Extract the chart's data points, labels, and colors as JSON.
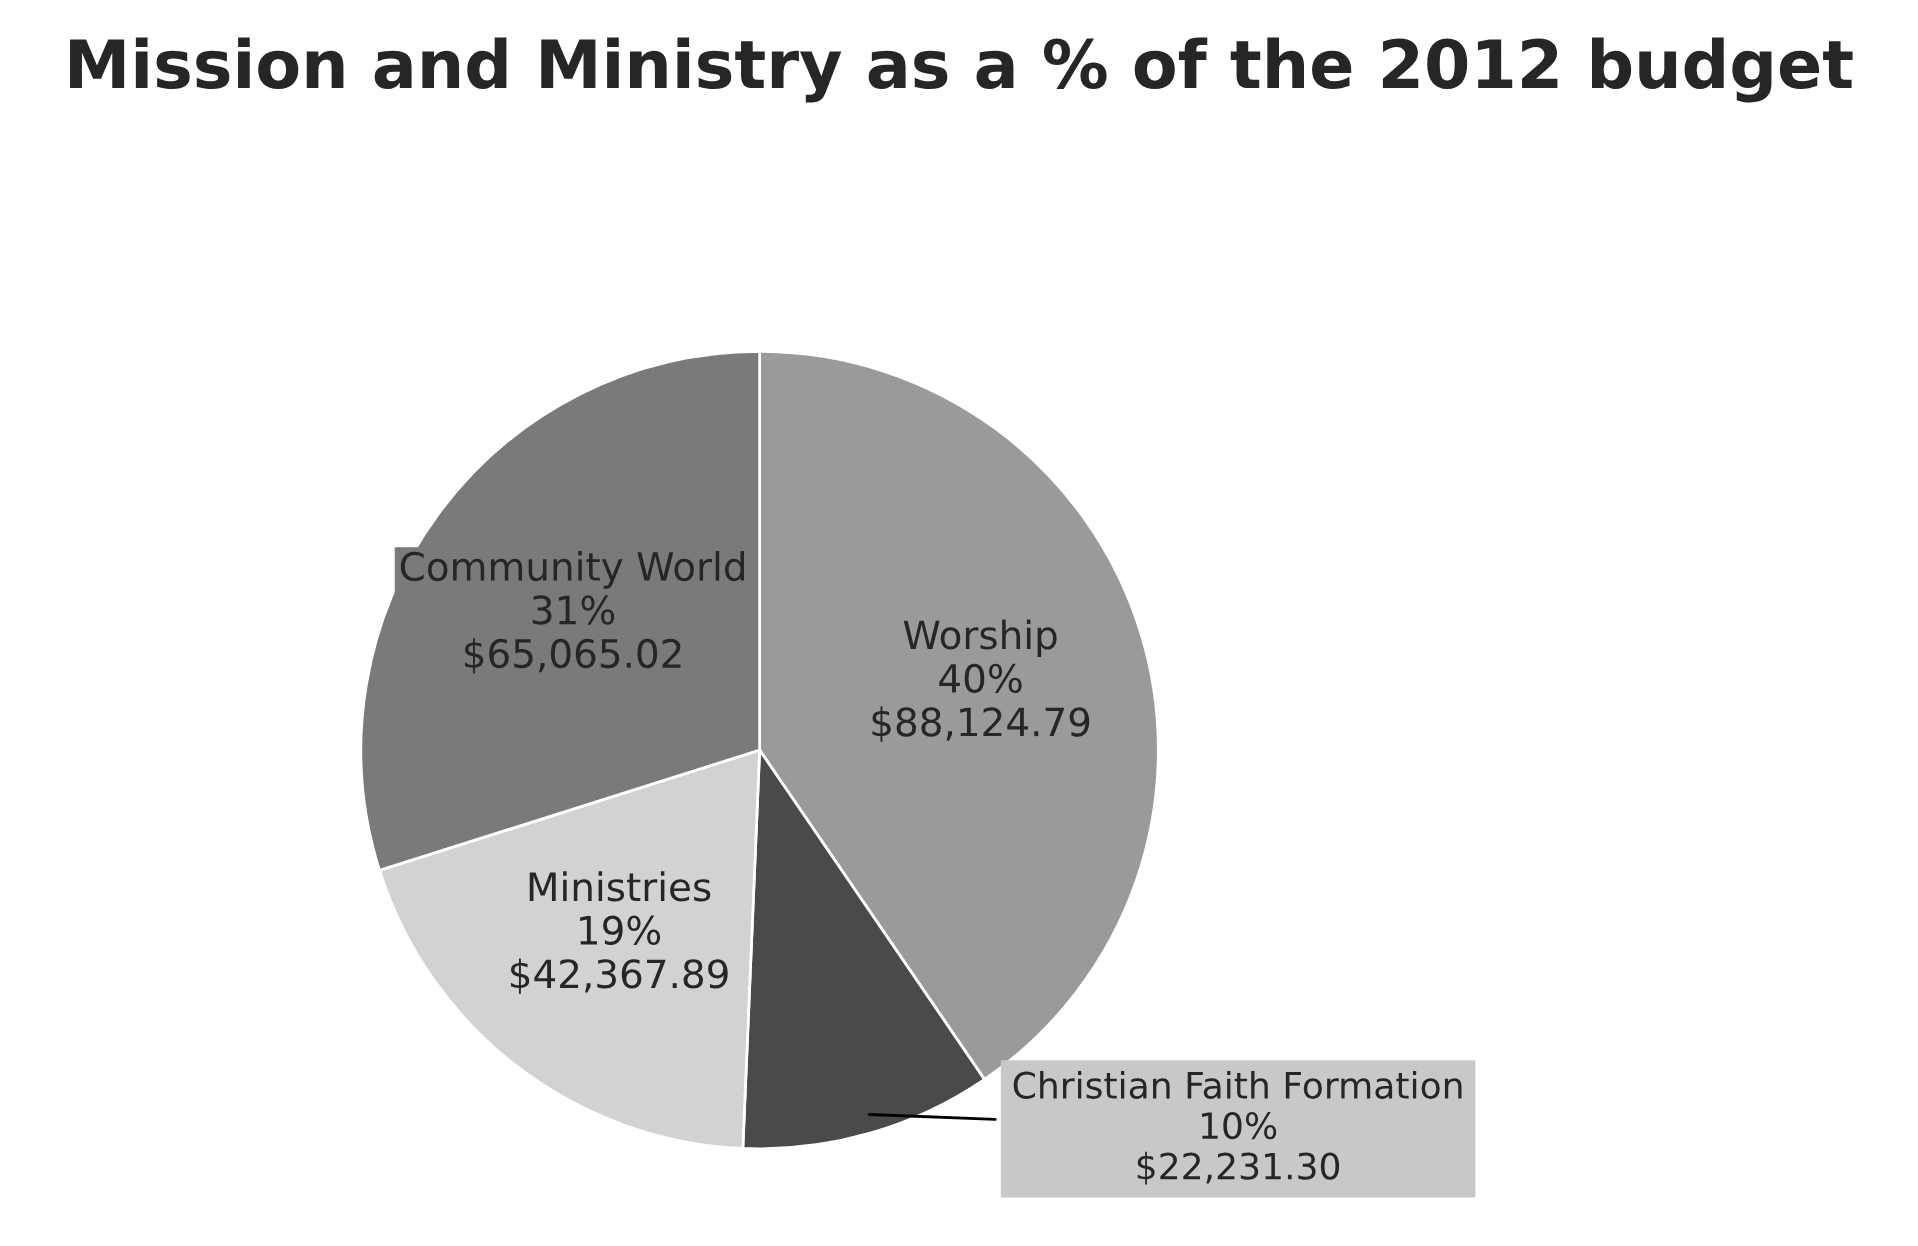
{
  "chart_data": {
    "type": "pie",
    "title": "Mission and Ministry as a % of the 2012 budget",
    "categories": [
      "Worship",
      "Christian Faith Formation",
      "Ministries",
      "Community World"
    ],
    "values": [
      88124.79,
      22231.3,
      42367.89,
      65065.02
    ],
    "colors": [
      "#9a9a9a",
      "#4a4a4a",
      "#d2d2d2",
      "#7a7a7a"
    ],
    "value_labels": [
      "40%\n$88,124.79",
      "10%\n$22,231.30",
      "19%\n$42,367.89",
      "31%\n$65,065.02"
    ],
    "legend": false
  }
}
